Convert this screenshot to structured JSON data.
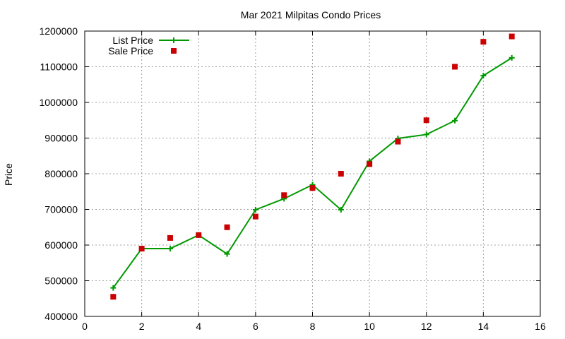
{
  "chart_data": {
    "type": "line",
    "title": "Mar 2021 Milpitas Condo Prices",
    "xlabel": "",
    "ylabel": "Price",
    "xlim": [
      0,
      16
    ],
    "ylim": [
      400000,
      1200000
    ],
    "x_ticks": [
      0,
      2,
      4,
      6,
      8,
      10,
      12,
      14,
      16
    ],
    "y_ticks": [
      400000,
      500000,
      600000,
      700000,
      800000,
      900000,
      1000000,
      1100000,
      1200000
    ],
    "grid": true,
    "legend_position": "top-left",
    "series": [
      {
        "name": "List Price",
        "style": "line-plus-markers",
        "color": "#009900",
        "x": [
          1,
          2,
          3,
          4,
          5,
          6,
          7,
          8,
          9,
          10,
          11,
          12,
          13,
          14,
          15
        ],
        "y": [
          480000,
          590000,
          590000,
          628000,
          575000,
          699000,
          730000,
          769000,
          699000,
          835000,
          899000,
          910000,
          949000,
          1075000,
          1125000
        ]
      },
      {
        "name": "Sale Price",
        "style": "square-markers",
        "color": "#cc0000",
        "x": [
          1,
          2,
          3,
          4,
          5,
          6,
          7,
          8,
          9,
          10,
          11,
          12,
          13,
          14,
          15
        ],
        "y": [
          455000,
          590000,
          620000,
          628000,
          650000,
          680000,
          740000,
          760000,
          800000,
          827000,
          890000,
          950000,
          1100000,
          1170000,
          1185000
        ]
      }
    ]
  }
}
